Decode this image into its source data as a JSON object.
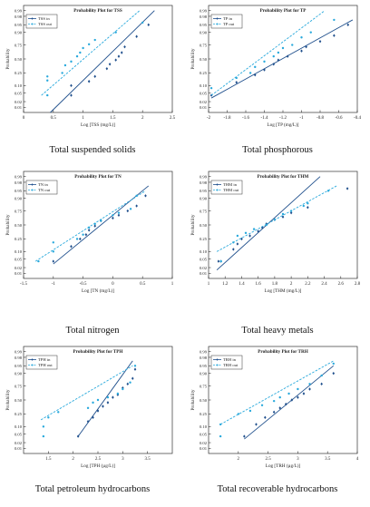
{
  "colors": {
    "in": "#1f4f8c",
    "out": "#29a9dc",
    "frame": "#333333"
  },
  "y_ticks": [
    "0.99",
    "0.98",
    "0.95",
    "0.90",
    "0.75",
    "0.50",
    "0.25",
    "0.10",
    "0.05",
    "0.02",
    "0.01"
  ],
  "y_probs": [
    0.99,
    0.98,
    0.95,
    0.9,
    0.75,
    0.5,
    0.25,
    0.1,
    0.05,
    0.02,
    0.01
  ],
  "chart_data": [
    {
      "type": "scatter",
      "title": "Probability Plot for TSS",
      "xlabel": "Log [TSS (mg/L)]",
      "ylabel": "Probability",
      "caption": "Total suspended solids",
      "xlim": [
        0,
        2.5
      ],
      "x_ticks": [
        0,
        0.5,
        1,
        1.5,
        2,
        2.5
      ],
      "legend": "top-left",
      "series": [
        {
          "name": "TSS in",
          "style": "in",
          "line": [
            [
              0.45,
              0.005
            ],
            [
              2.2,
              0.99
            ]
          ],
          "points": [
            [
              0.8,
              0.04
            ],
            [
              0.8,
              0.1
            ],
            [
              1.1,
              0.14
            ],
            [
              1.2,
              0.2
            ],
            [
              1.4,
              0.32
            ],
            [
              1.45,
              0.4
            ],
            [
              1.55,
              0.48
            ],
            [
              1.6,
              0.55
            ],
            [
              1.65,
              0.62
            ],
            [
              1.7,
              0.72
            ],
            [
              1.9,
              0.86
            ],
            [
              2.1,
              0.95
            ]
          ]
        },
        {
          "name": "TSS out",
          "style": "out",
          "line": [
            [
              0.3,
              0.04
            ],
            [
              1.95,
              0.99
            ]
          ],
          "points": [
            [
              0.4,
              0.04
            ],
            [
              0.4,
              0.15
            ],
            [
              0.4,
              0.2
            ],
            [
              0.65,
              0.25
            ],
            [
              0.7,
              0.38
            ],
            [
              0.8,
              0.45
            ],
            [
              0.9,
              0.55
            ],
            [
              0.95,
              0.62
            ],
            [
              1.0,
              0.7
            ],
            [
              1.1,
              0.76
            ],
            [
              1.2,
              0.82
            ],
            [
              1.55,
              0.9
            ],
            [
              2.0,
              0.96
            ]
          ]
        }
      ]
    },
    {
      "type": "scatter",
      "title": "Probability Plot for TP",
      "xlabel": "Log [TP (mg/L)]",
      "ylabel": "Probability",
      "caption": "Total phosphorous",
      "xlim": [
        -2,
        -0.4
      ],
      "x_ticks": [
        -2,
        -1.8,
        -1.6,
        -1.4,
        -1.2,
        -1,
        -0.8,
        -0.6,
        -0.4
      ],
      "legend": "top-left",
      "series": [
        {
          "name": "TP in",
          "style": "in",
          "line": [
            [
              -1.97,
              0.03
            ],
            [
              -0.45,
              0.97
            ]
          ],
          "points": [
            [
              -1.97,
              0.04
            ],
            [
              -1.7,
              0.13
            ],
            [
              -1.5,
              0.22
            ],
            [
              -1.4,
              0.3
            ],
            [
              -1.3,
              0.4
            ],
            [
              -1.25,
              0.48
            ],
            [
              -1.15,
              0.55
            ],
            [
              -1.0,
              0.65
            ],
            [
              -0.95,
              0.72
            ],
            [
              -0.8,
              0.8
            ],
            [
              -0.65,
              0.87
            ],
            [
              -0.5,
              0.95
            ]
          ]
        },
        {
          "name": "TP out",
          "style": "out",
          "line": [
            [
              -1.97,
              0.04
            ],
            [
              -0.75,
              0.99
            ]
          ],
          "points": [
            [
              -1.97,
              0.08
            ],
            [
              -1.7,
              0.18
            ],
            [
              -1.55,
              0.25
            ],
            [
              -1.5,
              0.35
            ],
            [
              -1.4,
              0.45
            ],
            [
              -1.3,
              0.55
            ],
            [
              -1.25,
              0.62
            ],
            [
              -1.2,
              0.7
            ],
            [
              -1.1,
              0.75
            ],
            [
              -1.0,
              0.85
            ],
            [
              -0.9,
              0.9
            ],
            [
              -0.65,
              0.97
            ]
          ]
        }
      ]
    },
    {
      "type": "scatter",
      "title": "Probability Plot for TN",
      "xlabel": "Log [TN (mg/L)]",
      "ylabel": "Probability",
      "caption": "Total nitrogen",
      "xlim": [
        -1.5,
        1
      ],
      "x_ticks": [
        -1.5,
        -1,
        -0.5,
        0,
        0.5,
        1
      ],
      "legend": "top-left",
      "series": [
        {
          "name": "TN in",
          "style": "in",
          "line": [
            [
              -1.0,
              0.03
            ],
            [
              0.6,
              0.97
            ]
          ],
          "points": [
            [
              -1.0,
              0.04
            ],
            [
              -0.7,
              0.15
            ],
            [
              -0.55,
              0.25
            ],
            [
              -0.45,
              0.32
            ],
            [
              -0.4,
              0.4
            ],
            [
              -0.3,
              0.48
            ],
            [
              -0.2,
              0.58
            ],
            [
              0.0,
              0.63
            ],
            [
              0.1,
              0.68
            ],
            [
              0.25,
              0.75
            ],
            [
              0.4,
              0.82
            ],
            [
              0.55,
              0.92
            ]
          ]
        },
        {
          "name": "TN out",
          "style": "out",
          "line": [
            [
              -1.3,
              0.04
            ],
            [
              0.55,
              0.95
            ]
          ],
          "points": [
            [
              -1.25,
              0.04
            ],
            [
              -1.0,
              0.1
            ],
            [
              -1.0,
              0.2
            ],
            [
              -0.6,
              0.25
            ],
            [
              -0.5,
              0.32
            ],
            [
              -0.4,
              0.45
            ],
            [
              -0.3,
              0.52
            ],
            [
              -0.2,
              0.58
            ],
            [
              0.0,
              0.68
            ],
            [
              0.1,
              0.72
            ],
            [
              0.3,
              0.78
            ],
            [
              0.4,
              0.92
            ]
          ]
        }
      ]
    },
    {
      "type": "scatter",
      "title": "Probability Plot for THM",
      "xlabel": "Log [THM (mg/L)]",
      "ylabel": "Probability",
      "caption": "Total heavy metals",
      "xlim": [
        1,
        2.8
      ],
      "x_ticks": [
        1,
        1.2,
        1.4,
        1.6,
        1.8,
        2,
        2.2,
        2.4,
        2.6,
        2.8
      ],
      "legend": "top-left",
      "series": [
        {
          "name": "THM in",
          "style": "in",
          "line": [
            [
              1.1,
              0.015
            ],
            [
              2.35,
              0.99
            ]
          ],
          "points": [
            [
              1.12,
              0.04
            ],
            [
              1.15,
              0.04
            ],
            [
              1.3,
              0.12
            ],
            [
              1.35,
              0.18
            ],
            [
              1.4,
              0.25
            ],
            [
              1.5,
              0.3
            ],
            [
              1.6,
              0.38
            ],
            [
              1.65,
              0.45
            ],
            [
              1.7,
              0.52
            ],
            [
              1.8,
              0.6
            ],
            [
              1.9,
              0.65
            ],
            [
              2.0,
              0.72
            ],
            [
              2.2,
              0.8
            ],
            [
              2.68,
              0.96
            ]
          ]
        },
        {
          "name": "THM out",
          "style": "out",
          "line": [
            [
              1.1,
              0.1
            ],
            [
              2.55,
              0.97
            ]
          ],
          "points": [
            [
              1.15,
              0.04
            ],
            [
              1.3,
              0.2
            ],
            [
              1.35,
              0.3
            ],
            [
              1.45,
              0.35
            ],
            [
              1.55,
              0.42
            ],
            [
              1.7,
              0.5
            ],
            [
              1.8,
              0.6
            ],
            [
              1.9,
              0.7
            ],
            [
              2.0,
              0.75
            ],
            [
              2.15,
              0.82
            ],
            [
              2.2,
              0.85
            ],
            [
              2.45,
              0.95
            ]
          ]
        }
      ]
    },
    {
      "type": "scatter",
      "title": "Probability Plot for TPH",
      "xlabel": "Log [TPH (µg/L)]",
      "ylabel": "Probability",
      "caption": "Total petroleum hydrocarbons",
      "xlim": [
        1,
        4
      ],
      "x_ticks": [
        1.5,
        2,
        2.5,
        3,
        3.5
      ],
      "legend": "top-left",
      "series": [
        {
          "name": "TPH in",
          "style": "in",
          "line": [
            [
              2.1,
              0.04
            ],
            [
              3.2,
              0.97
            ]
          ],
          "points": [
            [
              2.1,
              0.04
            ],
            [
              2.3,
              0.15
            ],
            [
              2.4,
              0.2
            ],
            [
              2.5,
              0.3
            ],
            [
              2.6,
              0.38
            ],
            [
              2.7,
              0.45
            ],
            [
              2.8,
              0.55
            ],
            [
              2.9,
              0.6
            ],
            [
              3.0,
              0.72
            ],
            [
              3.1,
              0.78
            ],
            [
              3.2,
              0.85
            ],
            [
              3.25,
              0.93
            ]
          ]
        },
        {
          "name": "TPH out",
          "style": "out",
          "line": [
            [
              1.35,
              0.17
            ],
            [
              3.2,
              0.95
            ]
          ],
          "points": [
            [
              1.4,
              0.04
            ],
            [
              1.4,
              0.1
            ],
            [
              1.5,
              0.2
            ],
            [
              1.7,
              0.28
            ],
            [
              2.3,
              0.35
            ],
            [
              2.4,
              0.45
            ],
            [
              2.5,
              0.5
            ],
            [
              2.7,
              0.55
            ],
            [
              2.9,
              0.62
            ],
            [
              3.0,
              0.7
            ],
            [
              3.15,
              0.8
            ],
            [
              3.25,
              0.95
            ]
          ]
        }
      ]
    },
    {
      "type": "scatter",
      "title": "Probability Plot for TRH",
      "xlabel": "Log [TRH (µg/L)]",
      "ylabel": "Probability",
      "caption": "Total recoverable hydrocarbons",
      "xlim": [
        1.5,
        4
      ],
      "x_ticks": [
        2,
        2.5,
        3,
        3.5,
        4
      ],
      "legend": "top-left",
      "series": [
        {
          "name": "TRH in",
          "style": "in",
          "line": [
            [
              2.1,
              0.03
            ],
            [
              3.6,
              0.95
            ]
          ],
          "points": [
            [
              2.1,
              0.04
            ],
            [
              2.3,
              0.12
            ],
            [
              2.45,
              0.2
            ],
            [
              2.6,
              0.28
            ],
            [
              2.7,
              0.35
            ],
            [
              2.8,
              0.42
            ],
            [
              2.9,
              0.5
            ],
            [
              3.0,
              0.55
            ],
            [
              3.1,
              0.62
            ],
            [
              3.2,
              0.7
            ],
            [
              3.4,
              0.78
            ],
            [
              3.6,
              0.9
            ]
          ]
        },
        {
          "name": "TRH out",
          "style": "out",
          "line": [
            [
              1.7,
              0.12
            ],
            [
              3.6,
              0.97
            ]
          ],
          "points": [
            [
              1.7,
              0.04
            ],
            [
              1.7,
              0.12
            ],
            [
              2.0,
              0.25
            ],
            [
              2.2,
              0.3
            ],
            [
              2.4,
              0.4
            ],
            [
              2.6,
              0.48
            ],
            [
              2.7,
              0.55
            ],
            [
              2.85,
              0.62
            ],
            [
              3.0,
              0.7
            ],
            [
              3.2,
              0.78
            ],
            [
              3.4,
              0.88
            ],
            [
              3.6,
              0.96
            ]
          ]
        }
      ]
    }
  ]
}
